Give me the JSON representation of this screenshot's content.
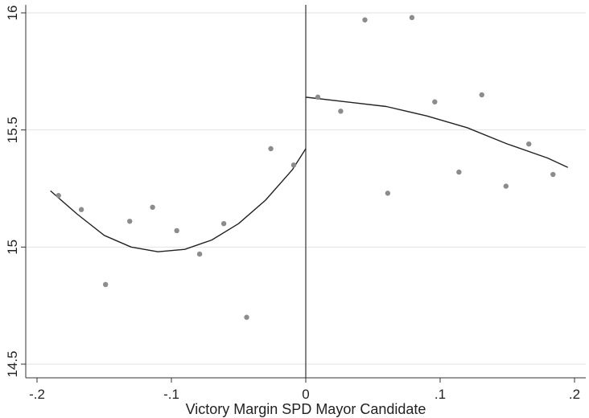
{
  "chart_data": {
    "type": "scatter",
    "title": "",
    "xlabel": "Victory Margin SPD Mayor Candidate",
    "ylabel": "",
    "xlim": [
      -0.2,
      0.2
    ],
    "ylim": [
      14.5,
      16
    ],
    "x_ticks": [
      -0.2,
      -0.1,
      0,
      0.1,
      0.2
    ],
    "x_tick_labels": [
      "-.2",
      "-.1",
      "0",
      ".1",
      ".2"
    ],
    "y_ticks": [
      14.5,
      15,
      15.5,
      16
    ],
    "y_tick_labels": [
      "14.5",
      "15",
      "15.5",
      "16"
    ],
    "grid": "horizontal",
    "cutoff_line_x": 0,
    "point_color": "#8c8c8c",
    "fit_color": "#222222",
    "series": [
      {
        "kind": "points",
        "x": [
          -0.184,
          -0.167,
          -0.149,
          -0.131,
          -0.114,
          -0.096,
          -0.079,
          -0.061,
          -0.044,
          -0.026,
          -0.009,
          0.009,
          0.026,
          0.044,
          0.061,
          0.079,
          0.096,
          0.114,
          0.131,
          0.149,
          0.166,
          0.184
        ],
        "y": [
          15.22,
          15.16,
          14.84,
          15.11,
          15.17,
          15.07,
          14.97,
          15.1,
          14.7,
          15.42,
          15.35,
          15.64,
          15.58,
          15.97,
          15.23,
          15.98,
          15.62,
          15.32,
          15.65,
          15.26,
          15.44,
          15.31
        ]
      },
      {
        "kind": "fit",
        "x": [
          -0.19,
          -0.17,
          -0.15,
          -0.13,
          -0.11,
          -0.09,
          -0.07,
          -0.05,
          -0.03,
          -0.01,
          0
        ],
        "y": [
          15.24,
          15.14,
          15.05,
          15.0,
          14.98,
          14.99,
          15.03,
          15.1,
          15.2,
          15.33,
          15.42
        ]
      },
      {
        "kind": "fit",
        "x": [
          0,
          0.03,
          0.06,
          0.09,
          0.12,
          0.15,
          0.18,
          0.195
        ],
        "y": [
          15.64,
          15.62,
          15.6,
          15.56,
          15.51,
          15.44,
          15.38,
          15.34
        ]
      }
    ]
  }
}
